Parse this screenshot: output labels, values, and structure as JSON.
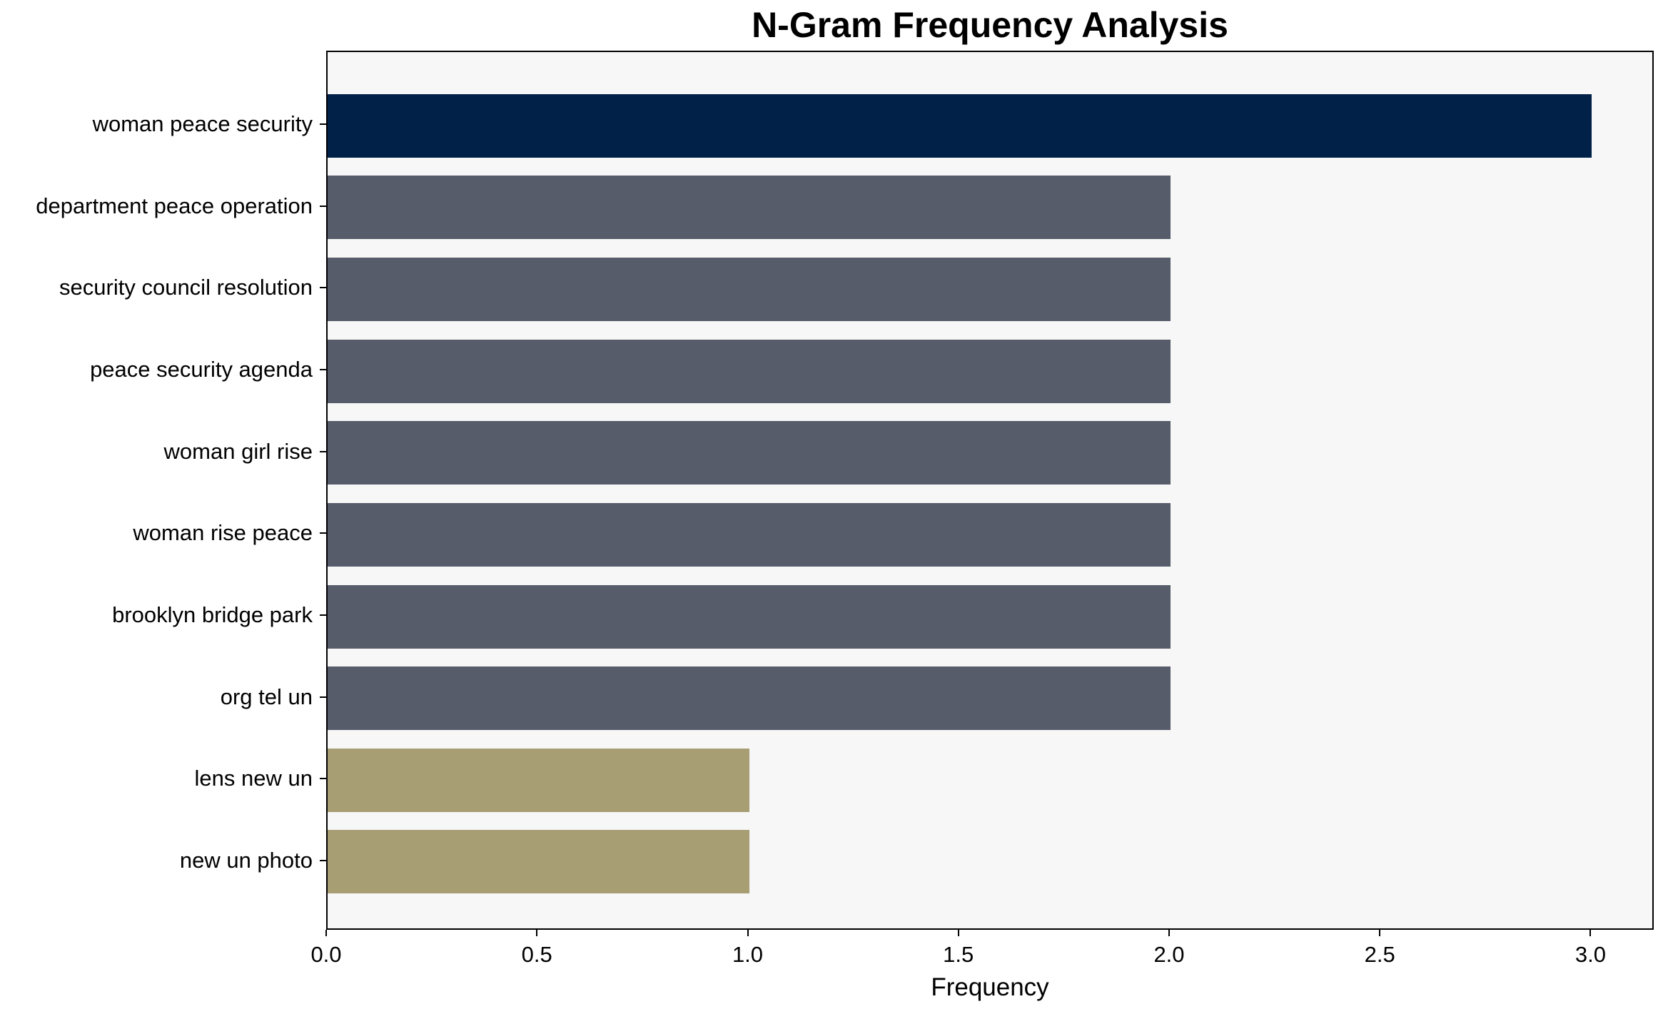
{
  "title": "N-Gram Frequency Analysis",
  "chart_data": {
    "type": "bar",
    "orientation": "horizontal",
    "title": "N-Gram Frequency Analysis",
    "xlabel": "Frequency",
    "ylabel": "",
    "categories": [
      "woman peace security",
      "department peace operation",
      "security council resolution",
      "peace security agenda",
      "woman girl rise",
      "woman rise peace",
      "brooklyn bridge park",
      "org tel un",
      "lens new un",
      "new un photo"
    ],
    "values": [
      3,
      2,
      2,
      2,
      2,
      2,
      2,
      2,
      1,
      1
    ],
    "bar_colors": [
      "#022149",
      "#575c6b",
      "#575c6b",
      "#575c6b",
      "#575c6b",
      "#575c6b",
      "#575c6b",
      "#575c6b",
      "#a89e74",
      "#a89e74"
    ],
    "xtick_values": [
      0,
      0.5,
      1,
      1.5,
      2,
      2.5,
      3
    ],
    "xtick_labels": [
      "0.0",
      "0.5",
      "1.0",
      "1.5",
      "2.0",
      "2.5",
      "3.0"
    ],
    "xlim": [
      0,
      3.15
    ],
    "grid": false,
    "legend": false,
    "colors": {
      "highest_bar": "#022149",
      "mid_bar": "#575c6b",
      "low_bar": "#a89e74",
      "plot_background": "#f7f7f7",
      "figure_background": "#ffffff",
      "axis": "#000000"
    }
  }
}
